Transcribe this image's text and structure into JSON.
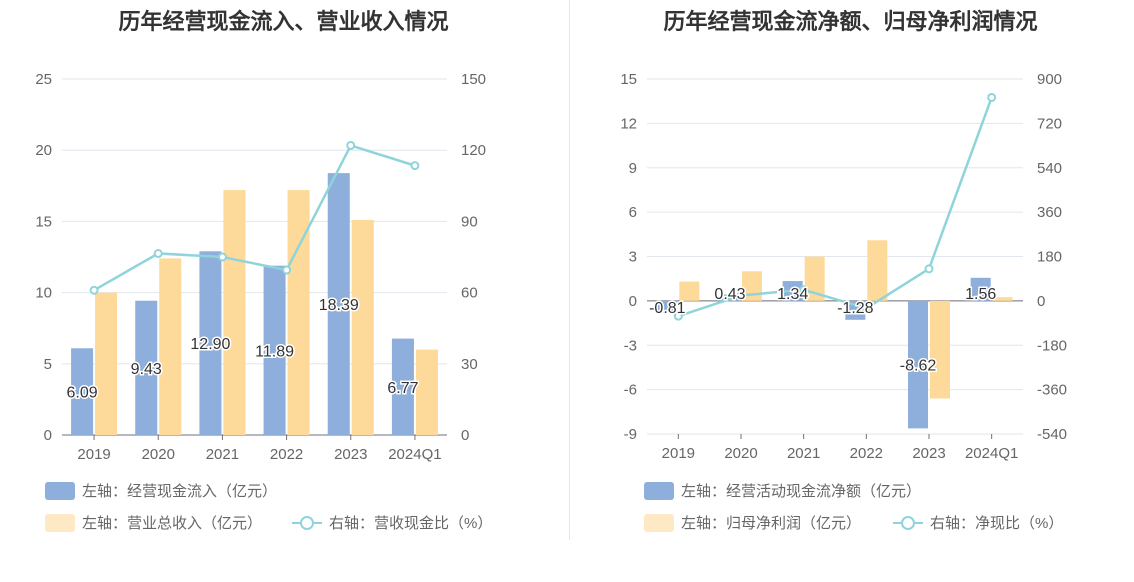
{
  "colors": {
    "bar_primary": "#8eaedb",
    "bar_secondary": "#fdd99a",
    "line": "#8fd4da",
    "grid": "#e2e6ee",
    "axis_text": "#666666",
    "title_text": "#333333"
  },
  "chart_data": [
    {
      "type": "bar",
      "title": "历年经营现金流入、营业收入情况",
      "categories": [
        "2019",
        "2020",
        "2021",
        "2022",
        "2023",
        "2024Q1"
      ],
      "y_left": {
        "min": 0,
        "max": 25,
        "ticks": [
          "0",
          "5",
          "10",
          "15",
          "20",
          "25"
        ]
      },
      "y_right": {
        "min": 0,
        "max": 150,
        "ticks": [
          "0",
          "30",
          "60",
          "90",
          "120",
          "150"
        ]
      },
      "grid": true,
      "legend_position": "bottom-left",
      "series": [
        {
          "name": "左轴：经营现金流入（亿元）",
          "type": "bar",
          "axis": "left",
          "values": [
            6.09,
            9.43,
            12.9,
            11.89,
            18.39,
            6.77
          ],
          "labels": [
            "6.09",
            "9.43",
            "12.90",
            "11.89",
            "18.39",
            "6.77"
          ]
        },
        {
          "name": "左轴：营业总收入（亿元）",
          "type": "bar",
          "axis": "left",
          "values": [
            10.0,
            12.4,
            17.2,
            17.2,
            15.1,
            6.0
          ]
        },
        {
          "name": "右轴：营收现金比（%）",
          "type": "line",
          "axis": "right",
          "values": [
            61.0,
            76.5,
            75.0,
            69.5,
            122.0,
            113.5
          ]
        }
      ]
    },
    {
      "type": "bar",
      "title": "历年经营现金流净额、归母净利润情况",
      "categories": [
        "2019",
        "2020",
        "2021",
        "2022",
        "2023",
        "2024Q1"
      ],
      "y_left": {
        "min": -9,
        "max": 15,
        "ticks": [
          "-9",
          "-6",
          "-3",
          "0",
          "3",
          "6",
          "9",
          "12",
          "15"
        ]
      },
      "y_right": {
        "min": -540,
        "max": 900,
        "ticks": [
          "-540",
          "-360",
          "-180",
          "0",
          "180",
          "360",
          "540",
          "720",
          "900"
        ]
      },
      "grid": true,
      "legend_position": "bottom-left",
      "series": [
        {
          "name": "左轴：经营活动现金流净额（亿元）",
          "type": "bar",
          "axis": "left",
          "values": [
            -0.81,
            0.43,
            1.34,
            -1.28,
            -8.62,
            1.56
          ],
          "labels": [
            "-0.81",
            "0.43",
            "1.34",
            "-1.28",
            "-8.62",
            "1.56"
          ]
        },
        {
          "name": "左轴：归母净利润（亿元）",
          "type": "bar",
          "axis": "left",
          "values": [
            1.3,
            2.0,
            3.0,
            4.1,
            -6.6,
            0.25
          ]
        },
        {
          "name": "右轴：净现比（%）",
          "type": "line",
          "axis": "right",
          "values": [
            -62,
            22,
            45,
            -30,
            130,
            825
          ]
        }
      ]
    }
  ]
}
